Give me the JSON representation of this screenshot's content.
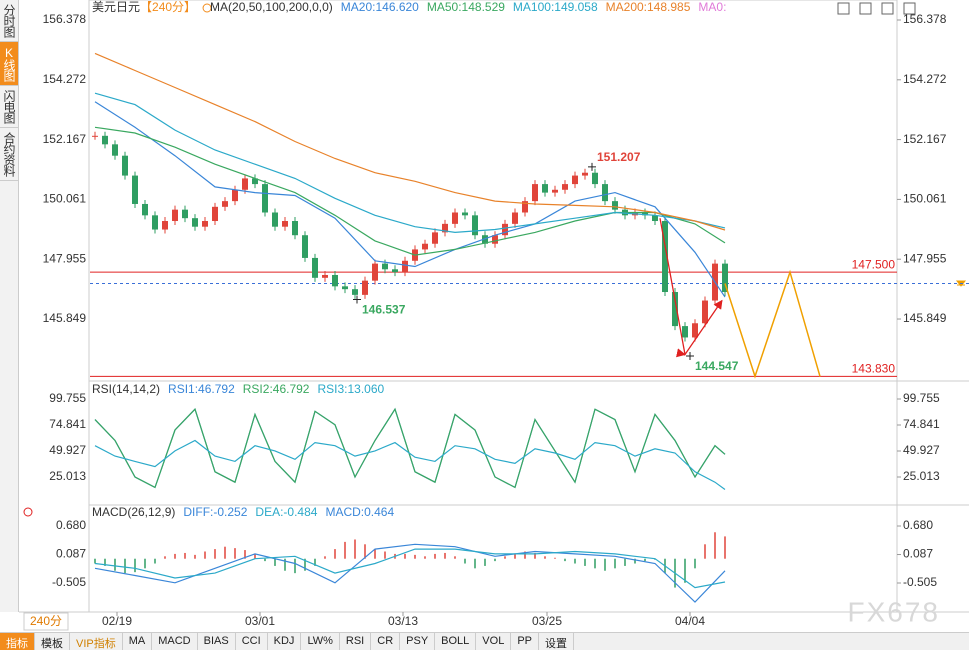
{
  "sidebar": {
    "tabs": [
      "分时图",
      "K线图",
      "闪电图",
      "合约资料"
    ]
  },
  "period_button": "240分",
  "watermark": "FX678",
  "toolbar": {
    "tabs": [
      "指标",
      "模板",
      "VIP指标",
      "MA",
      "MACD",
      "BIAS",
      "CCI",
      "KDJ",
      "LW%",
      "RSI",
      "CR",
      "PSY",
      "BOLL",
      "VOL",
      "PP",
      "设置"
    ]
  },
  "chart_data": [
    {
      "type": "candlestick",
      "title": "美元日元",
      "subtitle": "【240分】",
      "legend_title": "MA(20,50,100,200,0,0)",
      "up_color": "#e0443a",
      "down_color": "#2f9e62",
      "values": [
        152.3,
        152.0,
        151.6,
        150.9,
        149.9,
        149.5,
        149.0,
        149.3,
        149.7,
        149.4,
        149.1,
        149.3,
        149.8,
        150.0,
        150.4,
        150.8,
        150.6,
        149.6,
        149.1,
        149.3,
        148.8,
        148.0,
        147.3,
        147.4,
        147.0,
        146.9,
        146.7,
        147.2,
        147.8,
        147.6,
        147.5,
        147.9,
        148.3,
        148.5,
        148.9,
        149.2,
        149.6,
        149.5,
        148.8,
        148.5,
        148.8,
        149.2,
        149.6,
        150.0,
        150.6,
        150.3,
        150.4,
        150.6,
        150.9,
        151.0,
        150.6,
        150.0,
        149.7,
        149.5,
        149.6,
        149.5,
        149.3,
        146.8,
        145.6,
        145.2,
        145.7,
        146.5,
        147.8,
        146.8
      ],
      "series": [
        {
          "name": "MA20:146.620",
          "color": "#3a86d8",
          "x": [
            0,
            4,
            8,
            12,
            16,
            20,
            24,
            28,
            32,
            36,
            40,
            44,
            48,
            52,
            56,
            60,
            63
          ],
          "values": [
            153.5,
            152.6,
            151.6,
            150.5,
            150.3,
            150.2,
            149.4,
            147.9,
            147.7,
            148.3,
            148.8,
            149.2,
            150.0,
            150.3,
            149.8,
            148.2,
            146.62
          ]
        },
        {
          "name": "MA50:148.529",
          "color": "#3aa860",
          "x": [
            0,
            4,
            8,
            12,
            16,
            20,
            24,
            28,
            32,
            36,
            40,
            44,
            48,
            52,
            56,
            60,
            63
          ],
          "values": [
            152.6,
            152.4,
            151.9,
            151.3,
            150.8,
            150.3,
            149.5,
            148.6,
            148.1,
            148.3,
            148.6,
            148.9,
            149.3,
            149.6,
            149.6,
            149.2,
            148.529
          ]
        },
        {
          "name": "MA100:149.058",
          "color": "#2ba9c9",
          "x": [
            0,
            4,
            8,
            12,
            16,
            20,
            24,
            28,
            32,
            36,
            40,
            44,
            48,
            52,
            56,
            60,
            63
          ],
          "values": [
            153.8,
            153.4,
            152.5,
            151.8,
            151.3,
            150.8,
            150.1,
            149.5,
            149.1,
            148.9,
            149.0,
            149.2,
            149.4,
            149.6,
            149.5,
            149.3,
            149.058
          ]
        },
        {
          "name": "MA200:148.985",
          "color": "#e8822a",
          "x": [
            0,
            4,
            8,
            12,
            16,
            20,
            24,
            28,
            32,
            36,
            40,
            44,
            48,
            52,
            56,
            60,
            63
          ],
          "values": [
            155.2,
            154.6,
            154.0,
            153.4,
            152.8,
            152.1,
            151.5,
            151.0,
            150.7,
            150.3,
            150.0,
            149.9,
            149.85,
            149.8,
            149.6,
            149.3,
            148.985
          ]
        }
      ],
      "extra_legend": [
        {
          "name": "MA0:",
          "color": "#e07ad8"
        }
      ],
      "xlim": [
        -0.5,
        80.2
      ],
      "ylim": [
        143.702,
        157.082
      ],
      "yticks": [
        145.849,
        147.955,
        150.061,
        152.167,
        154.272,
        156.378
      ],
      "xticks": [
        {
          "value": 2.2,
          "label": "02/19"
        },
        {
          "value": 16.5,
          "label": "03/01"
        },
        {
          "value": 30.8,
          "label": "03/13"
        },
        {
          "value": 45.2,
          "label": "03/25"
        },
        {
          "value": 59.5,
          "label": "04/04"
        }
      ],
      "hlines": [
        {
          "value": 147.5,
          "label": "147.500",
          "color": "#e02020"
        },
        {
          "value": 143.83,
          "label": "143.830",
          "color": "#e02020"
        }
      ],
      "current_price": {
        "value": 147.1,
        "color": "#3a6fd8"
      },
      "annotations": [
        {
          "x": 49.7,
          "value": 151.207,
          "label": "151.207",
          "color": "#e0443a"
        },
        {
          "x": 26.2,
          "value": 146.537,
          "label": "146.537",
          "color": "#3aa860"
        },
        {
          "x": 59.5,
          "value": 144.547,
          "label": "144.547",
          "color": "#3aa860"
        }
      ],
      "projection": {
        "color": "#f0a000",
        "x": [
          63,
          66,
          69.5,
          72.5
        ],
        "values": [
          147.1,
          143.83,
          147.5,
          143.83
        ]
      },
      "arrows": {
        "color": "#e02020",
        "x": [
          56.5,
          59,
          62.7
        ],
        "values": [
          149.4,
          144.6,
          146.5
        ]
      }
    },
    {
      "type": "line",
      "title": "RSI(14,14,2)",
      "xlim": [
        -0.5,
        80.2
      ],
      "ylim": [
        -1.82,
        116.04
      ],
      "yticks": [
        {
          "value": 99.755,
          "label": "99.755"
        },
        {
          "value": 74.841,
          "label": "74.841"
        },
        {
          "value": 49.927,
          "label": "49.927"
        },
        {
          "value": 25.013,
          "label": "25.013"
        }
      ],
      "series": [
        {
          "name": "RSI1:46.792",
          "color": "#3a86d8",
          "x": [
            0,
            2,
            4,
            6,
            8,
            10,
            12,
            14,
            16,
            18,
            20,
            22,
            24,
            26,
            28,
            30,
            32,
            34,
            36,
            38,
            40,
            42,
            44,
            46,
            48,
            50,
            52,
            54,
            56,
            58,
            60,
            62,
            63
          ],
          "values": [
            80,
            60,
            25,
            15,
            70,
            90,
            30,
            20,
            85,
            40,
            20,
            88,
            75,
            25,
            60,
            90,
            30,
            20,
            85,
            70,
            25,
            15,
            80,
            50,
            20,
            90,
            80,
            30,
            85,
            60,
            25,
            55,
            46.792
          ]
        },
        {
          "name": "RSI2:46.792",
          "color": "#3aa860",
          "x": [
            0,
            2,
            4,
            6,
            8,
            10,
            12,
            14,
            16,
            18,
            20,
            22,
            24,
            26,
            28,
            30,
            32,
            34,
            36,
            38,
            40,
            42,
            44,
            46,
            48,
            50,
            52,
            54,
            56,
            58,
            60,
            62,
            63
          ],
          "values": [
            80,
            60,
            25,
            15,
            70,
            90,
            30,
            20,
            85,
            40,
            20,
            88,
            75,
            25,
            60,
            90,
            30,
            20,
            85,
            70,
            25,
            15,
            80,
            50,
            20,
            90,
            80,
            30,
            85,
            60,
            25,
            55,
            46.792
          ]
        },
        {
          "name": "RSI3:13.060",
          "color": "#2ba9c9",
          "x": [
            0,
            2,
            4,
            6,
            8,
            10,
            12,
            14,
            16,
            18,
            20,
            22,
            24,
            26,
            28,
            30,
            32,
            34,
            36,
            38,
            40,
            42,
            44,
            46,
            48,
            50,
            52,
            54,
            56,
            58,
            60,
            62,
            63
          ],
          "values": [
            55,
            45,
            40,
            35,
            50,
            60,
            45,
            40,
            55,
            50,
            42,
            58,
            55,
            45,
            50,
            58,
            44,
            40,
            55,
            52,
            42,
            38,
            52,
            48,
            42,
            58,
            55,
            45,
            52,
            48,
            30,
            20,
            13.06
          ]
        }
      ]
    },
    {
      "type": "macd",
      "title": "MACD(26,12,9)",
      "xlim": [
        -0.5,
        80.2
      ],
      "ylim": [
        -1.108,
        1.117
      ],
      "yticks": [
        {
          "value": 0.68,
          "label": "0.680"
        },
        {
          "value": 0.087,
          "label": "0.087"
        },
        {
          "value": -0.505,
          "label": "-0.505"
        }
      ],
      "histogram": {
        "name": "MACD:0.464",
        "up_color": "#e0443a",
        "down_color": "#2f9e62",
        "values": [
          -0.1,
          -0.15,
          -0.25,
          -0.3,
          -0.28,
          -0.2,
          -0.1,
          0.05,
          0.1,
          0.12,
          0.08,
          0.15,
          0.2,
          0.25,
          0.22,
          0.18,
          0.1,
          -0.05,
          -0.15,
          -0.25,
          -0.3,
          -0.25,
          -0.15,
          0.05,
          0.2,
          0.35,
          0.4,
          0.3,
          0.2,
          0.15,
          0.1,
          0.1,
          0.08,
          0.05,
          0.1,
          0.12,
          0.05,
          -0.1,
          -0.2,
          -0.15,
          -0.05,
          0.05,
          0.1,
          0.15,
          0.12,
          0.05,
          0.02,
          -0.05,
          -0.1,
          -0.15,
          -0.2,
          -0.25,
          -0.2,
          -0.15,
          -0.1,
          -0.05,
          -0.02,
          -0.3,
          -0.6,
          -0.5,
          -0.2,
          0.3,
          0.55,
          0.464
        ]
      },
      "series": [
        {
          "name": "DIFF:-0.252",
          "color": "#3a86d8",
          "x": [
            0,
            4,
            8,
            12,
            16,
            20,
            24,
            28,
            32,
            36,
            40,
            44,
            48,
            52,
            56,
            60,
            63
          ],
          "values": [
            -0.2,
            -0.35,
            -0.5,
            -0.2,
            0.1,
            -0.1,
            -0.5,
            0.2,
            0.3,
            0.25,
            0.05,
            0.15,
            0.1,
            0.05,
            -0.1,
            -0.9,
            -0.252
          ]
        },
        {
          "name": "DEA:-0.484",
          "color": "#2ba9c9",
          "x": [
            0,
            4,
            8,
            12,
            16,
            20,
            24,
            28,
            32,
            36,
            40,
            44,
            48,
            52,
            56,
            60,
            63
          ],
          "values": [
            -0.1,
            -0.2,
            -0.4,
            -0.3,
            0.0,
            0.05,
            -0.3,
            -0.1,
            0.2,
            0.2,
            0.1,
            0.1,
            0.15,
            0.1,
            0.0,
            -0.6,
            -0.484
          ]
        }
      ]
    }
  ]
}
